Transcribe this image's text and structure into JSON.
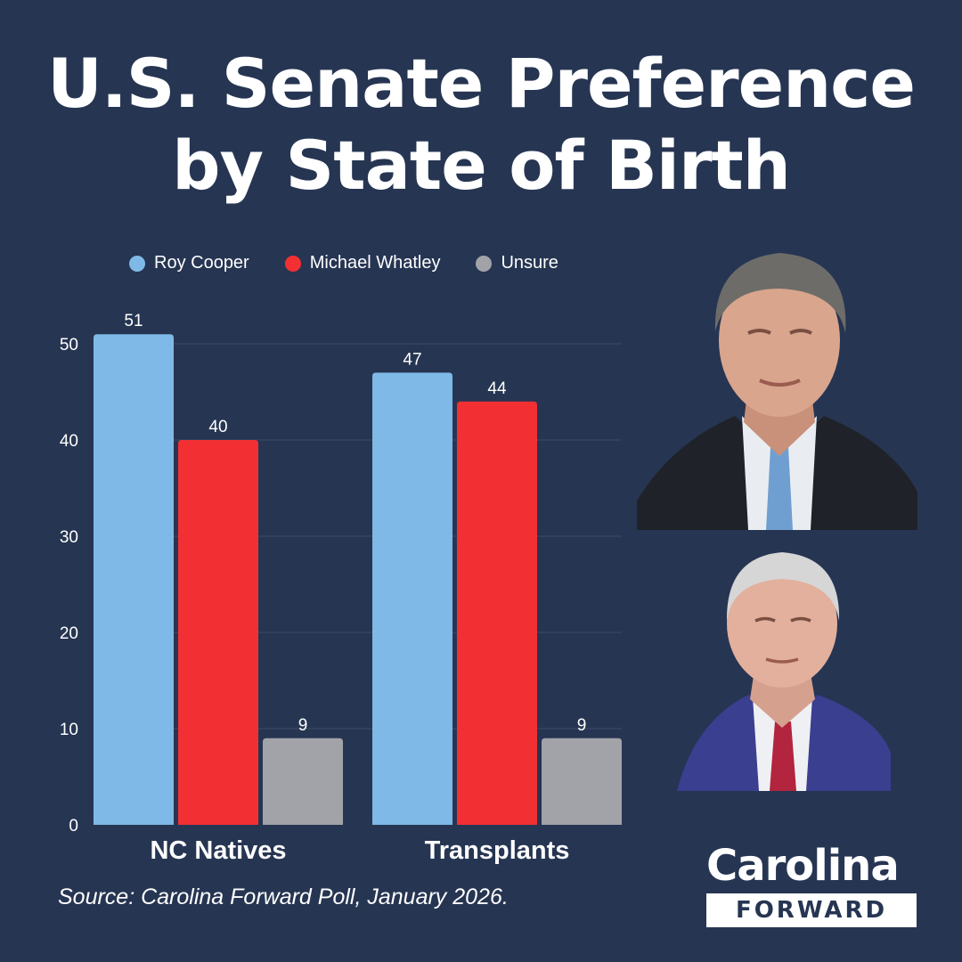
{
  "title": {
    "line1": "U.S. Senate Preference",
    "line2": "by State of Birth"
  },
  "colors": {
    "background": "#263552",
    "cooper": "#7fb9e8",
    "whatley": "#f23033",
    "unsure": "#a2a3a9",
    "grid": "#3e4c66"
  },
  "chart_data": {
    "type": "bar",
    "title": "U.S. Senate Preference by State of Birth",
    "categories": [
      "NC Natives",
      "Transplants"
    ],
    "series": [
      {
        "name": "Roy Cooper",
        "values": [
          51,
          47
        ]
      },
      {
        "name": "Michael Whatley",
        "values": [
          40,
          44
        ]
      },
      {
        "name": "Unsure",
        "values": [
          9,
          9
        ]
      }
    ],
    "yticks": [
      "0",
      "10",
      "20",
      "30",
      "40",
      "50"
    ],
    "ylim": [
      0,
      52
    ],
    "xlabel": "",
    "ylabel": "",
    "legend": "top",
    "grid": true
  },
  "photos": {
    "cooper": "Roy Cooper portrait",
    "whatley": "Michael Whatley portrait"
  },
  "source": "Source: Carolina Forward Poll, January 2026.",
  "logo": {
    "top": "Carolina",
    "bottom": "FORWARD"
  }
}
